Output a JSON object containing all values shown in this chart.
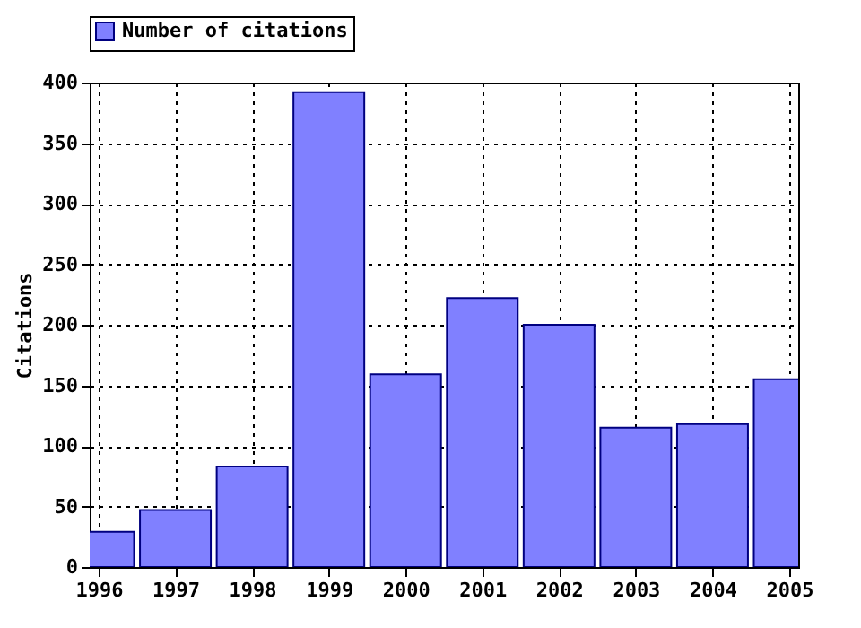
{
  "chart_data": {
    "type": "bar",
    "ylabel": "Citations",
    "x": [
      1996,
      1997,
      1998,
      1999,
      2000,
      2001,
      2002,
      2003,
      2004,
      2005
    ],
    "series": [
      {
        "name": "Number of citations",
        "color": "#8080ff",
        "values": [
          29,
          47,
          83,
          392,
          159,
          222,
          200,
          115,
          118,
          155
        ]
      }
    ],
    "xlim": [
      1996,
      2005
    ],
    "xticks": [
      1996,
      1997,
      1998,
      1999,
      2000,
      2001,
      2002,
      2003,
      2004,
      2005
    ],
    "ylim": [
      0,
      400
    ],
    "yticks": [
      0,
      50,
      100,
      150,
      200,
      250,
      300,
      350,
      400
    ],
    "grid": true,
    "legend": "top"
  }
}
